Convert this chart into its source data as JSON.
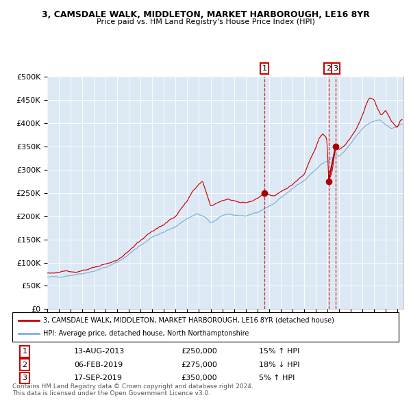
{
  "title1": "3, CAMSDALE WALK, MIDDLETON, MARKET HARBOROUGH, LE16 8YR",
  "title2": "Price paid vs. HM Land Registry's House Price Index (HPI)",
  "legend_line1": "3, CAMSDALE WALK, MIDDLETON, MARKET HARBOROUGH, LE16 8YR (detached house)",
  "legend_line2": "HPI: Average price, detached house, North Northamptonshire",
  "table_data": [
    [
      "1",
      "13-AUG-2013",
      "£250,000",
      "15% ↑ HPI"
    ],
    [
      "2",
      "06-FEB-2019",
      "£275,000",
      "18% ↓ HPI"
    ],
    [
      "3",
      "17-SEP-2019",
      "£350,000",
      "5% ↑ HPI"
    ]
  ],
  "footer": "Contains HM Land Registry data © Crown copyright and database right 2024.\nThis data is licensed under the Open Government Licence v3.0.",
  "sale_years": [
    2013.62,
    2019.1,
    2019.71
  ],
  "sale_prices": [
    250000,
    275000,
    350000
  ],
  "ylim": [
    0,
    500000
  ],
  "yticks": [
    0,
    50000,
    100000,
    150000,
    200000,
    250000,
    300000,
    350000,
    400000,
    450000,
    500000
  ],
  "xlim_start": 1995.0,
  "xlim_end": 2025.5,
  "bg_color": "#dce9f5",
  "line_color_red": "#cc0000",
  "line_color_blue": "#7bafd4",
  "marker_color": "#aa0000",
  "vline_color": "#cc0000",
  "box_color": "#cc0000",
  "grid_color": "#ffffff"
}
